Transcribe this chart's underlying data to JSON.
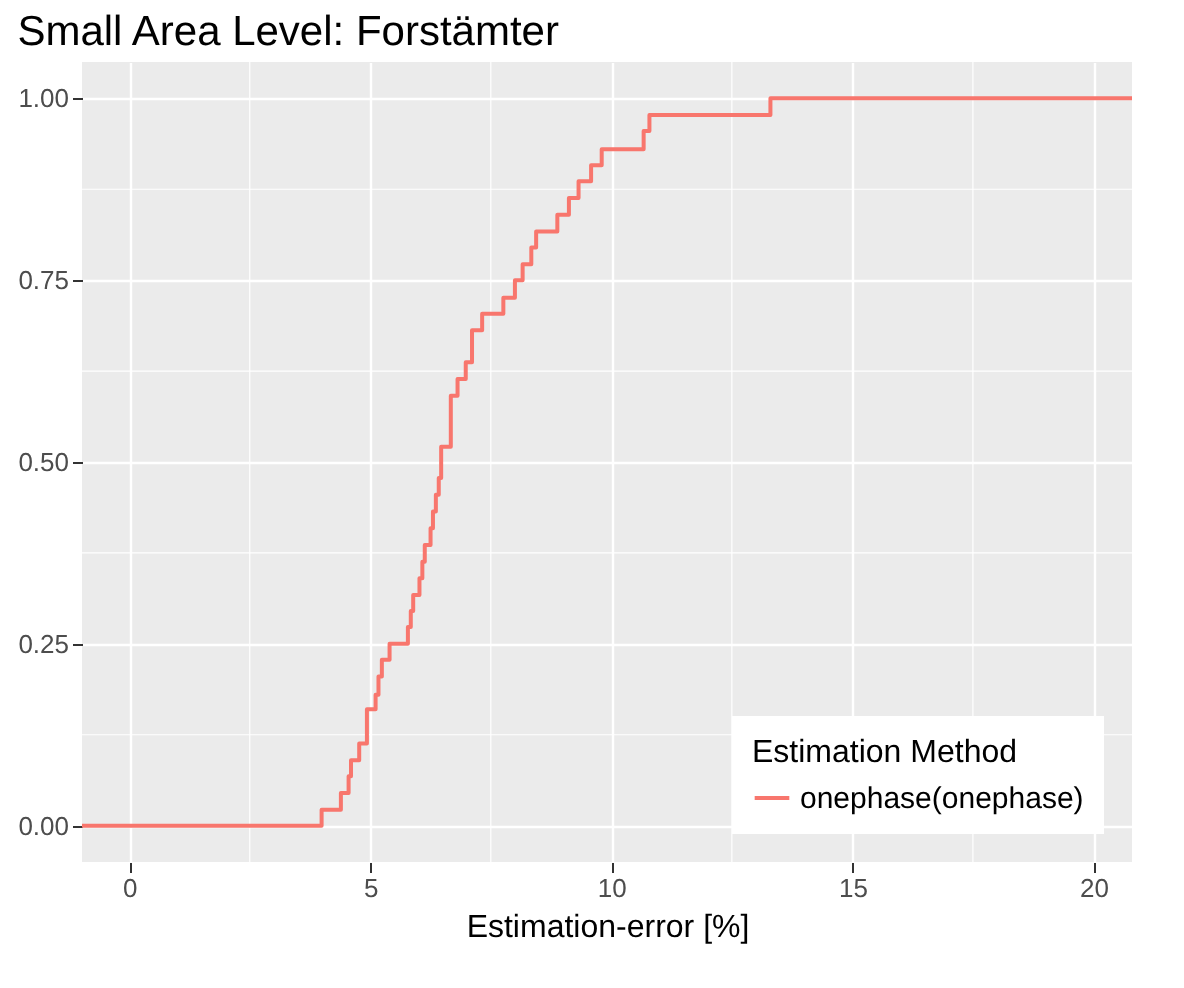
{
  "chart_data": {
    "type": "step",
    "title": "Small Area Level: Forstämter",
    "xlabel": "Estimation-error [%]",
    "legend_title": "Estimation Method",
    "series": [
      {
        "name": "onephase(onephase)",
        "color": "#f8766d",
        "x": [
          -0.98,
          3.99,
          4.39,
          4.55,
          4.6,
          4.77,
          4.93,
          5.11,
          5.17,
          5.24,
          5.4,
          5.78,
          5.84,
          5.89,
          6.02,
          6.08,
          6.13,
          6.25,
          6.3,
          6.36,
          6.42,
          6.47,
          6.67,
          6.81,
          6.98,
          7.11,
          7.32,
          7.76,
          8.0,
          8.16,
          8.34,
          8.44,
          8.88,
          9.12,
          9.32,
          9.58,
          9.8,
          10.67,
          10.79,
          13.3,
          20.8
        ],
        "values": [
          0,
          0.022,
          0.045,
          0.068,
          0.09,
          0.113,
          0.16,
          0.18,
          0.205,
          0.228,
          0.25,
          0.273,
          0.295,
          0.317,
          0.34,
          0.363,
          0.386,
          0.409,
          0.432,
          0.455,
          0.478,
          0.521,
          0.591,
          0.614,
          0.637,
          0.681,
          0.704,
          0.726,
          0.75,
          0.772,
          0.795,
          0.817,
          0.84,
          0.863,
          0.886,
          0.908,
          0.93,
          0.955,
          0.977,
          1.0,
          1.0
        ]
      }
    ],
    "xlim": [
      -0.98,
      20.8
    ],
    "xticks": [
      0,
      5,
      10,
      15,
      20
    ],
    "ylim": [
      -0.05,
      1.05
    ],
    "yticks": [
      {
        "value": 0,
        "label": "0.00"
      },
      {
        "value": 0.25,
        "label": "0.25"
      },
      {
        "value": 0.5,
        "label": "0.50"
      },
      {
        "value": 0.75,
        "label": "0.75"
      },
      {
        "value": 1,
        "label": "1.00"
      }
    ],
    "grid": true,
    "legend": "bottom right",
    "line_style": "solid",
    "marker": "none"
  }
}
